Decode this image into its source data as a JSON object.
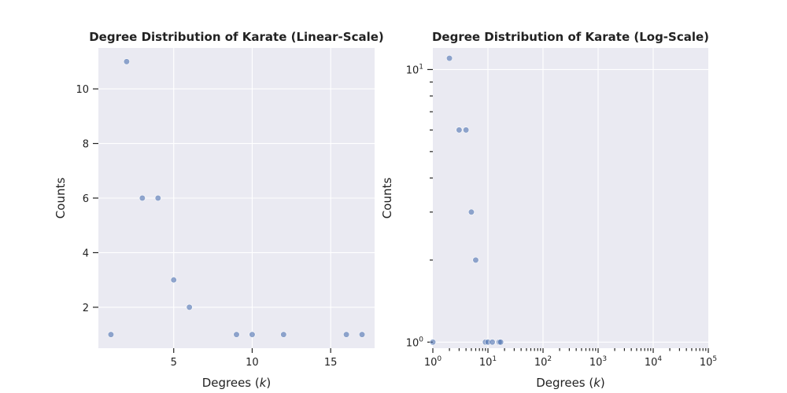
{
  "chart_data": [
    {
      "type": "scatter",
      "title": "Degree Distribution of Karate (Linear-Scale)",
      "xlabel": "Degrees (k)",
      "ylabel": "Counts",
      "xscale": "linear",
      "yscale": "linear",
      "xlim": [
        0.2,
        17.8
      ],
      "ylim": [
        0.5,
        11.5
      ],
      "xticks": [
        5,
        10,
        15
      ],
      "xtick_labels": [
        "5",
        "10",
        "15"
      ],
      "yticks": [
        2,
        4,
        6,
        8,
        10
      ],
      "ytick_labels": [
        "2",
        "4",
        "6",
        "8",
        "10"
      ],
      "grid": true,
      "series": [
        {
          "x": [
            1,
            2,
            3,
            4,
            5,
            6,
            9,
            10,
            12,
            16,
            17
          ],
          "y": [
            1,
            11,
            6,
            6,
            3,
            2,
            1,
            1,
            1,
            1,
            1
          ]
        }
      ]
    },
    {
      "type": "scatter",
      "title": "Degree Distribution of Karate (Log-Scale)",
      "xlabel": "Degrees (k)",
      "ylabel": "Counts",
      "xscale": "log",
      "yscale": "log",
      "xlim": [
        1,
        100000
      ],
      "ylim": [
        0.95,
        12
      ],
      "xticks": [
        1,
        10,
        100,
        1000,
        10000,
        100000
      ],
      "xtick_labels": [
        {
          "base": "10",
          "exp": "0"
        },
        {
          "base": "10",
          "exp": "1"
        },
        {
          "base": "10",
          "exp": "2"
        },
        {
          "base": "10",
          "exp": "3"
        },
        {
          "base": "10",
          "exp": "4"
        },
        {
          "base": "10",
          "exp": "5"
        }
      ],
      "yticks": [
        1,
        10
      ],
      "ytick_labels": [
        {
          "base": "10",
          "exp": "0"
        },
        {
          "base": "10",
          "exp": "1"
        }
      ],
      "grid": true,
      "series": [
        {
          "x": [
            1,
            2,
            3,
            4,
            5,
            6,
            9,
            10,
            12,
            16,
            17
          ],
          "y": [
            1,
            11,
            6,
            6,
            3,
            2,
            1,
            1,
            1,
            1,
            1
          ]
        }
      ]
    }
  ]
}
